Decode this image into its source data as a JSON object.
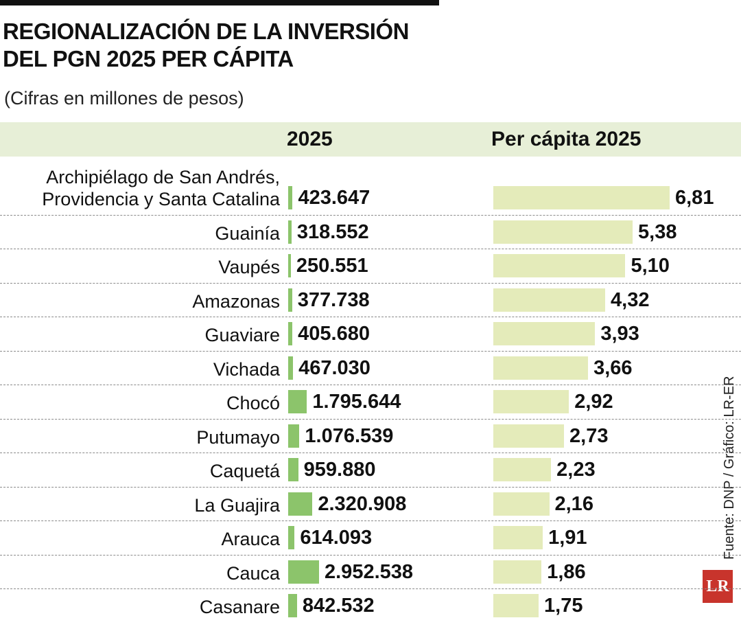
{
  "chart_data": {
    "type": "bar",
    "title": "REGIONALIZACIÓN DE LA INVERSIÓN DEL PGN 2025 PER CÁPITA",
    "subtitle": "(Cifras en millones de pesos)",
    "source": "Fuente: DNP / Gráfico: LR-ER",
    "logo": "LR",
    "categories": [
      "Archipiélago de San Andrés, Providencia y Santa Catalina",
      "Guainía",
      "Vaupés",
      "Amazonas",
      "Guaviare",
      "Vichada",
      "Chocó",
      "Putumayo",
      "Caquetá",
      "La Guajira",
      "Arauca",
      "Cauca",
      "Casanare"
    ],
    "series": [
      {
        "name": "2025",
        "color": "#8cc46b",
        "values": [
          423647,
          318552,
          250551,
          377738,
          405680,
          467030,
          1795644,
          1076539,
          959880,
          2320908,
          614093,
          2952538,
          842532
        ],
        "value_labels": [
          "423.647",
          "318.552",
          "250.551",
          "377.738",
          "405.680",
          "467.030",
          "1.795.644",
          "1.076.539",
          "959.880",
          "2.320.908",
          "614.093",
          "2.952.538",
          "842.532"
        ]
      },
      {
        "name": "Per cápita 2025",
        "color": "#e4ebba",
        "values": [
          6.81,
          5.38,
          5.1,
          4.32,
          3.93,
          3.66,
          2.92,
          2.73,
          2.23,
          2.16,
          1.91,
          1.86,
          1.75
        ],
        "value_labels": [
          "6,81",
          "5,38",
          "5,10",
          "4,32",
          "3,93",
          "3,66",
          "2,92",
          "2,73",
          "2,23",
          "2,16",
          "1,91",
          "1,86",
          "1,75"
        ]
      }
    ]
  }
}
